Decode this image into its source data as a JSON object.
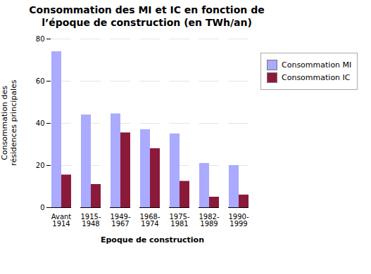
{
  "chart_data": {
    "type": "bar",
    "title": "Consommation des MI et IC en fonction de\nl’époque de construction (en TWh/an)",
    "xlabel": "Epoque de construction",
    "ylabel": "Consommation des\nrésidences principales",
    "categories": [
      "Avant\n1914",
      "1915-\n1948",
      "1949-\n1967",
      "1968-\n1974",
      "1975-\n1981",
      "1982-\n1989",
      "1990-\n1999"
    ],
    "series": [
      {
        "name": "Consommation MI",
        "color": "#aaaaff",
        "values": [
          74,
          44,
          44.5,
          37,
          35,
          21,
          20
        ]
      },
      {
        "name": "Consommation IC",
        "color": "#8b1a3a",
        "values": [
          15.5,
          11,
          35.5,
          28,
          12.5,
          5,
          6
        ]
      }
    ],
    "ylim": [
      0,
      80
    ],
    "yticks": [
      0,
      20,
      40,
      60,
      80
    ],
    "grid": true,
    "legend": "right"
  }
}
